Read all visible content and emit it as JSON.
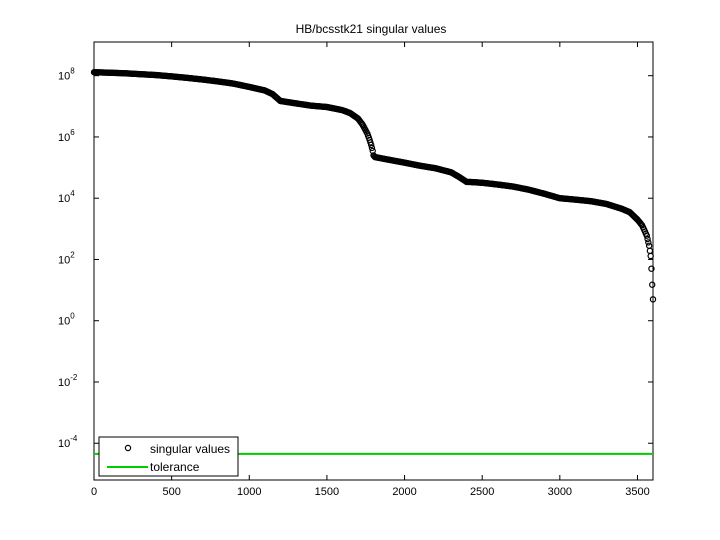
{
  "chart_data": {
    "type": "scatter",
    "title": "HB/bcsstk21 singular values",
    "xlabel": "",
    "ylabel": "",
    "xlim": [
      0,
      3600
    ],
    "ylim_log10": [
      -5.2,
      9.1
    ],
    "y_scale": "log",
    "x_ticks": [
      0,
      500,
      1000,
      1500,
      2000,
      2500,
      3000,
      3500
    ],
    "y_ticks": [
      {
        "base": "10",
        "exp": "8"
      },
      {
        "base": "10",
        "exp": "6"
      },
      {
        "base": "10",
        "exp": "4"
      },
      {
        "base": "10",
        "exp": "2"
      },
      {
        "base": "10",
        "exp": "0"
      },
      {
        "base": "10",
        "exp": "-2"
      },
      {
        "base": "10",
        "exp": "-4"
      }
    ],
    "grid": false,
    "legend_position": "bottom-left",
    "series": [
      {
        "name": "singular values",
        "marker": "circle",
        "color": "#000000",
        "x": [
          0,
          100,
          200,
          300,
          400,
          500,
          600,
          700,
          800,
          900,
          1000,
          1100,
          1150,
          1200,
          1300,
          1400,
          1500,
          1600,
          1650,
          1700,
          1730,
          1760,
          1775,
          1785,
          1795,
          1800,
          1810,
          1900,
          2000,
          2100,
          2200,
          2300,
          2350,
          2400,
          2420,
          2500,
          2600,
          2700,
          2800,
          2900,
          3000,
          3050,
          3100,
          3200,
          3300,
          3400,
          3450,
          3500,
          3530,
          3560,
          3575,
          3585,
          3590,
          3595,
          3600
        ],
        "y": [
          130000000.0,
          125000000.0,
          120000000.0,
          112000000.0,
          105000000.0,
          95000000.0,
          85000000.0,
          75000000.0,
          65000000.0,
          55000000.0,
          43000000.0,
          33000000.0,
          25000000.0,
          15000000.0,
          12500000.0,
          10500000.0,
          9500000.0,
          7500000.0,
          6000000.0,
          4000000.0,
          2500000.0,
          1300000.0,
          800000.0,
          550000.0,
          350000.0,
          250000.0,
          220000.0,
          180000.0,
          145000.0,
          115000.0,
          95000.0,
          70000.0,
          50000.0,
          34000.0,
          34000.0,
          32000.0,
          28000.0,
          24000.0,
          19000.0,
          14000.0,
          10000.0,
          9500.0,
          9000.0,
          8000.0,
          6500.0,
          4500.0,
          3500.0,
          2000.0,
          1300.0,
          600,
          280,
          130,
          50,
          15,
          5
        ]
      },
      {
        "name": "tolerance",
        "marker": "line",
        "color": "#00cc00",
        "x": [
          0,
          3600
        ],
        "y": [
          4.5e-05,
          4.5e-05
        ]
      }
    ]
  }
}
